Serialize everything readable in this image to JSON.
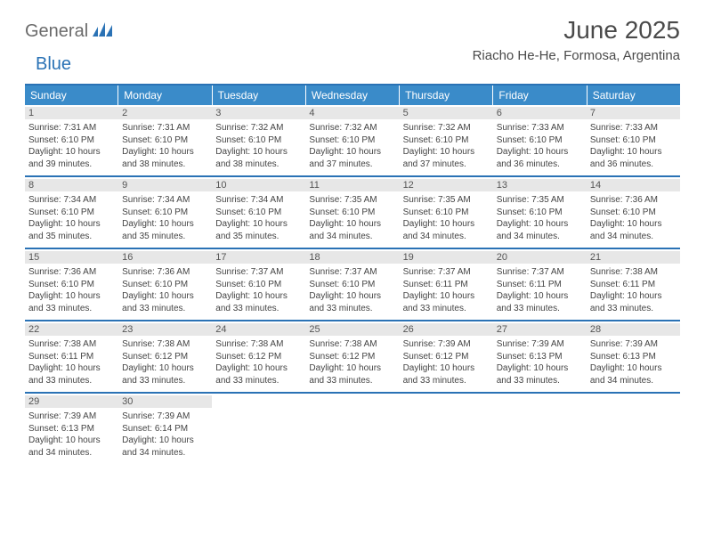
{
  "brand": {
    "part1": "General",
    "part2": "Blue"
  },
  "title": "June 2025",
  "location": "Riacho He-He, Formosa, Argentina",
  "colors": {
    "header_bg": "#3a8bc9",
    "rule": "#2a72b5",
    "daynum_bg": "#e7e7e7",
    "text": "#4a4a4a"
  },
  "weekdays": [
    "Sunday",
    "Monday",
    "Tuesday",
    "Wednesday",
    "Thursday",
    "Friday",
    "Saturday"
  ],
  "weeks": [
    [
      {
        "n": "1",
        "sr": "7:31 AM",
        "ss": "6:10 PM",
        "dl": "10 hours and 39 minutes."
      },
      {
        "n": "2",
        "sr": "7:31 AM",
        "ss": "6:10 PM",
        "dl": "10 hours and 38 minutes."
      },
      {
        "n": "3",
        "sr": "7:32 AM",
        "ss": "6:10 PM",
        "dl": "10 hours and 38 minutes."
      },
      {
        "n": "4",
        "sr": "7:32 AM",
        "ss": "6:10 PM",
        "dl": "10 hours and 37 minutes."
      },
      {
        "n": "5",
        "sr": "7:32 AM",
        "ss": "6:10 PM",
        "dl": "10 hours and 37 minutes."
      },
      {
        "n": "6",
        "sr": "7:33 AM",
        "ss": "6:10 PM",
        "dl": "10 hours and 36 minutes."
      },
      {
        "n": "7",
        "sr": "7:33 AM",
        "ss": "6:10 PM",
        "dl": "10 hours and 36 minutes."
      }
    ],
    [
      {
        "n": "8",
        "sr": "7:34 AM",
        "ss": "6:10 PM",
        "dl": "10 hours and 35 minutes."
      },
      {
        "n": "9",
        "sr": "7:34 AM",
        "ss": "6:10 PM",
        "dl": "10 hours and 35 minutes."
      },
      {
        "n": "10",
        "sr": "7:34 AM",
        "ss": "6:10 PM",
        "dl": "10 hours and 35 minutes."
      },
      {
        "n": "11",
        "sr": "7:35 AM",
        "ss": "6:10 PM",
        "dl": "10 hours and 34 minutes."
      },
      {
        "n": "12",
        "sr": "7:35 AM",
        "ss": "6:10 PM",
        "dl": "10 hours and 34 minutes."
      },
      {
        "n": "13",
        "sr": "7:35 AM",
        "ss": "6:10 PM",
        "dl": "10 hours and 34 minutes."
      },
      {
        "n": "14",
        "sr": "7:36 AM",
        "ss": "6:10 PM",
        "dl": "10 hours and 34 minutes."
      }
    ],
    [
      {
        "n": "15",
        "sr": "7:36 AM",
        "ss": "6:10 PM",
        "dl": "10 hours and 33 minutes."
      },
      {
        "n": "16",
        "sr": "7:36 AM",
        "ss": "6:10 PM",
        "dl": "10 hours and 33 minutes."
      },
      {
        "n": "17",
        "sr": "7:37 AM",
        "ss": "6:10 PM",
        "dl": "10 hours and 33 minutes."
      },
      {
        "n": "18",
        "sr": "7:37 AM",
        "ss": "6:10 PM",
        "dl": "10 hours and 33 minutes."
      },
      {
        "n": "19",
        "sr": "7:37 AM",
        "ss": "6:11 PM",
        "dl": "10 hours and 33 minutes."
      },
      {
        "n": "20",
        "sr": "7:37 AM",
        "ss": "6:11 PM",
        "dl": "10 hours and 33 minutes."
      },
      {
        "n": "21",
        "sr": "7:38 AM",
        "ss": "6:11 PM",
        "dl": "10 hours and 33 minutes."
      }
    ],
    [
      {
        "n": "22",
        "sr": "7:38 AM",
        "ss": "6:11 PM",
        "dl": "10 hours and 33 minutes."
      },
      {
        "n": "23",
        "sr": "7:38 AM",
        "ss": "6:12 PM",
        "dl": "10 hours and 33 minutes."
      },
      {
        "n": "24",
        "sr": "7:38 AM",
        "ss": "6:12 PM",
        "dl": "10 hours and 33 minutes."
      },
      {
        "n": "25",
        "sr": "7:38 AM",
        "ss": "6:12 PM",
        "dl": "10 hours and 33 minutes."
      },
      {
        "n": "26",
        "sr": "7:39 AM",
        "ss": "6:12 PM",
        "dl": "10 hours and 33 minutes."
      },
      {
        "n": "27",
        "sr": "7:39 AM",
        "ss": "6:13 PM",
        "dl": "10 hours and 33 minutes."
      },
      {
        "n": "28",
        "sr": "7:39 AM",
        "ss": "6:13 PM",
        "dl": "10 hours and 34 minutes."
      }
    ],
    [
      {
        "n": "29",
        "sr": "7:39 AM",
        "ss": "6:13 PM",
        "dl": "10 hours and 34 minutes."
      },
      {
        "n": "30",
        "sr": "7:39 AM",
        "ss": "6:14 PM",
        "dl": "10 hours and 34 minutes."
      },
      null,
      null,
      null,
      null,
      null
    ]
  ],
  "labels": {
    "sunrise": "Sunrise: ",
    "sunset": "Sunset: ",
    "daylight": "Daylight: "
  }
}
